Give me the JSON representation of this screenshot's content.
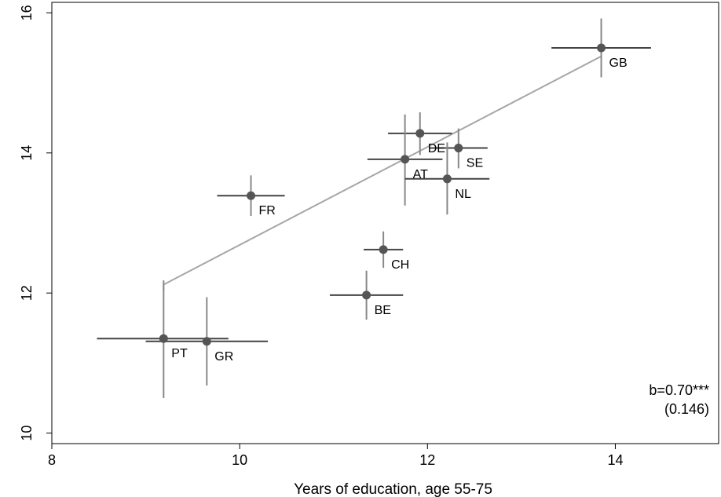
{
  "chart_data": {
    "type": "scatter",
    "title": "",
    "xlabel": "Years of education, age 55-75",
    "ylabel": "",
    "xlim": [
      8,
      15.1
    ],
    "ylim": [
      9.85,
      16.15
    ],
    "xticks": [
      8,
      10,
      12,
      14
    ],
    "yticks": [
      10,
      12,
      14,
      16
    ],
    "grid": false,
    "points": [
      {
        "label": "GB",
        "x": 13.85,
        "y": 15.5,
        "xerr": [
          13.32,
          14.38
        ],
        "yerr": [
          15.08,
          15.92
        ]
      },
      {
        "label": "DE",
        "x": 11.92,
        "y": 14.28,
        "xerr": [
          11.58,
          12.26
        ],
        "yerr": [
          13.97,
          14.58
        ]
      },
      {
        "label": "SE",
        "x": 12.33,
        "y": 14.07,
        "xerr": [
          12.02,
          12.64
        ],
        "yerr": [
          13.78,
          14.35
        ]
      },
      {
        "label": "AT",
        "x": 11.76,
        "y": 13.91,
        "xerr": [
          11.36,
          12.16
        ],
        "yerr": [
          13.25,
          14.55
        ]
      },
      {
        "label": "NL",
        "x": 12.21,
        "y": 13.63,
        "xerr": [
          11.76,
          12.66
        ],
        "yerr": [
          13.12,
          14.15
        ]
      },
      {
        "label": "FR",
        "x": 10.12,
        "y": 13.39,
        "xerr": [
          9.76,
          10.48
        ],
        "yerr": [
          13.1,
          13.68
        ]
      },
      {
        "label": "CH",
        "x": 11.53,
        "y": 12.62,
        "xerr": [
          11.32,
          11.74
        ],
        "yerr": [
          12.36,
          12.88
        ]
      },
      {
        "label": "BE",
        "x": 11.35,
        "y": 11.97,
        "xerr": [
          10.96,
          11.74
        ],
        "yerr": [
          11.62,
          12.32
        ]
      },
      {
        "label": "PT",
        "x": 9.19,
        "y": 11.35,
        "xerr": [
          8.48,
          9.88
        ],
        "yerr": [
          10.5,
          12.18
        ]
      },
      {
        "label": "GR",
        "x": 9.65,
        "y": 11.31,
        "xerr": [
          9.0,
          10.3
        ],
        "yerr": [
          10.68,
          11.94
        ]
      }
    ],
    "fit_line": {
      "x": [
        9.19,
        13.85
      ],
      "y": [
        12.12,
        15.38
      ]
    },
    "annotation": {
      "line1": "b=0.70***",
      "line2": "(0.146)"
    },
    "colors": {
      "marker": "#555555",
      "error_bar": "#888888",
      "h_error_bar": "#444444",
      "fit_line": "#a6a6a6"
    }
  }
}
